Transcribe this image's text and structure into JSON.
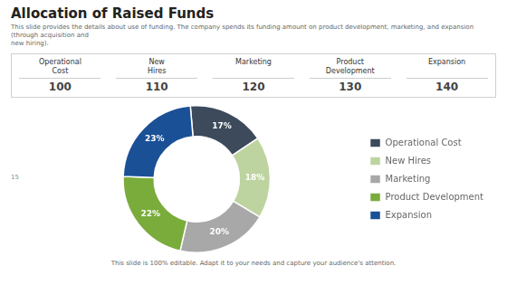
{
  "chart_data": [
    {
      "type": "table",
      "title": "Allocation of Raised Funds",
      "subtitle": "This slide provides the details about use of funding. The company spends its funding amount on product development, marketing, and expansion (through acquisition and\nnew hiring).",
      "categories": [
        "Operational\nCost",
        "New\nHires",
        "Marketing",
        "Product\nDevelopment",
        "Expansion"
      ],
      "values": [
        100,
        110,
        120,
        130,
        140
      ]
    },
    {
      "type": "doughnut",
      "categories": [
        "Operational Cost",
        "New Hires",
        "Marketing",
        "Product Development",
        "Expansion"
      ],
      "values": [
        17,
        18,
        20,
        22,
        23
      ],
      "value_labels": [
        "17%",
        "18%",
        "20%",
        "22%",
        "23%"
      ],
      "colors": [
        "#3c4a5c",
        "#bed4a0",
        "#a8a8a8",
        "#7aac3c",
        "#1a5096"
      ],
      "data_labels": true,
      "legend": "right",
      "annotations": [
        "15"
      ],
      "footer": "This slide is 100% editable.  Adapt it to your needs and capture your audience's attention."
    }
  ]
}
